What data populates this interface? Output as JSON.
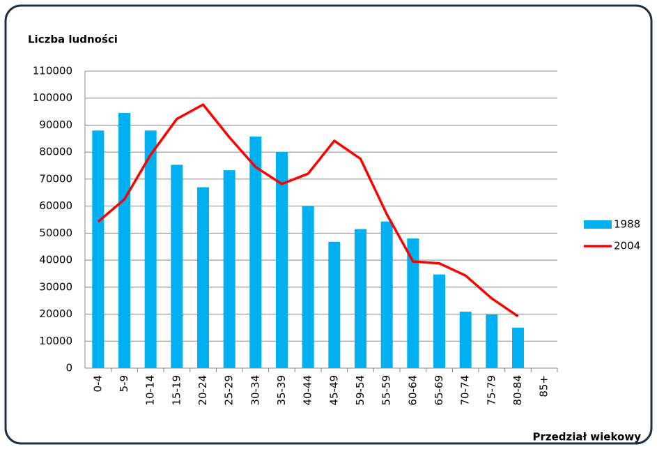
{
  "chart_data": {
    "type": "bar_line",
    "y_axis_title": "Liczba ludności",
    "x_axis_title": "Przedział wiekowy",
    "categories": [
      "0-4",
      "5-9",
      "10-14",
      "15-19",
      "20-24",
      "25-29",
      "30-34",
      "35-39",
      "40-44",
      "45-49",
      "59-54",
      "55-59",
      "60-64",
      "65-69",
      "70-74",
      "75-79",
      "80-84",
      "85+"
    ],
    "series": [
      {
        "name": "1988",
        "type": "bar",
        "color": "#00b0f0",
        "values": [
          88000,
          94500,
          88000,
          75300,
          67000,
          73300,
          85800,
          80000,
          60000,
          46800,
          51500,
          54300,
          48000,
          34700,
          20900,
          19800,
          15000,
          null
        ]
      },
      {
        "name": "2004",
        "type": "line",
        "color": "#ff0000",
        "values": [
          54200,
          62500,
          79000,
          92300,
          97600,
          85500,
          74500,
          68200,
          72000,
          84200,
          77500,
          57000,
          39500,
          38800,
          34300,
          25800,
          19200,
          null
        ]
      }
    ],
    "ylim": [
      0,
      110000
    ],
    "yticks": [
      0,
      10000,
      20000,
      30000,
      40000,
      50000,
      60000,
      70000,
      80000,
      90000,
      100000,
      110000
    ],
    "grid": true,
    "legend": "right"
  }
}
